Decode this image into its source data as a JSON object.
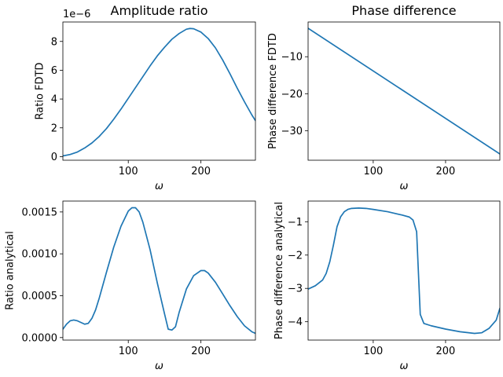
{
  "chart_data": [
    {
      "type": "line",
      "title": "Amplitude ratio",
      "xlabel": "ω",
      "ylabel": "Ratio FDTD",
      "y_offset_label": "1e−6",
      "xlim": [
        10,
        275
      ],
      "ylim": [
        -0.25,
        9.35
      ],
      "x_ticks": [
        100,
        200
      ],
      "x_tick_labels": [
        "100",
        "200"
      ],
      "y_ticks": [
        0,
        2,
        4,
        6,
        8
      ],
      "y_tick_labels": [
        "0",
        "2",
        "4",
        "6",
        "8"
      ],
      "color": "#1f77b4",
      "series": [
        {
          "x": [
            10,
            20,
            30,
            40,
            50,
            60,
            70,
            80,
            90,
            100,
            110,
            120,
            130,
            140,
            150,
            160,
            170,
            180,
            185,
            190,
            200,
            210,
            220,
            230,
            240,
            250,
            260,
            270,
            275
          ],
          "y": [
            0.05,
            0.15,
            0.32,
            0.6,
            0.95,
            1.4,
            1.95,
            2.6,
            3.3,
            4.05,
            4.8,
            5.55,
            6.3,
            7.0,
            7.6,
            8.15,
            8.55,
            8.85,
            8.9,
            8.88,
            8.65,
            8.2,
            7.55,
            6.7,
            5.75,
            4.75,
            3.8,
            2.9,
            2.5
          ]
        }
      ]
    },
    {
      "type": "line",
      "title": "Phase difference",
      "xlabel": "ω",
      "ylabel": "Phase difference FDTD",
      "xlim": [
        10,
        275
      ],
      "ylim": [
        -38,
        -0.6
      ],
      "x_ticks": [
        100,
        200
      ],
      "x_tick_labels": [
        "100",
        "200"
      ],
      "y_ticks": [
        -10,
        -20,
        -30
      ],
      "y_tick_labels": [
        "−10",
        "−20",
        "−30"
      ],
      "color": "#1f77b4",
      "series": [
        {
          "x": [
            10,
            275
          ],
          "y": [
            -2.3,
            -36.3
          ]
        }
      ]
    },
    {
      "type": "line",
      "title": "",
      "xlabel": "ω",
      "ylabel": "Ratio analytical",
      "xlim": [
        10,
        275
      ],
      "ylim": [
        -3e-05,
        0.00163
      ],
      "x_ticks": [
        100,
        200
      ],
      "x_tick_labels": [
        "100",
        "200"
      ],
      "y_ticks": [
        0,
        0.0005,
        0.001,
        0.0015
      ],
      "y_tick_labels": [
        "0.0000",
        "0.0005",
        "0.0010",
        "0.0015"
      ],
      "color": "#1f77b4",
      "series": [
        {
          "x": [
            10,
            15,
            20,
            25,
            30,
            35,
            40,
            45,
            50,
            55,
            60,
            70,
            80,
            90,
            100,
            105,
            110,
            115,
            120,
            130,
            140,
            150,
            155,
            160,
            165,
            170,
            180,
            190,
            200,
            205,
            210,
            220,
            230,
            240,
            250,
            260,
            270,
            275
          ],
          "y": [
            0.0001,
            0.00016,
            0.0002,
            0.00021,
            0.0002,
            0.00018,
            0.00016,
            0.00017,
            0.00023,
            0.00033,
            0.00047,
            0.00078,
            0.00108,
            0.00133,
            0.00151,
            0.00155,
            0.00155,
            0.0015,
            0.00138,
            0.00105,
            0.00065,
            0.00028,
            0.0001,
            9e-05,
            0.00013,
            0.0003,
            0.00058,
            0.00074,
            0.0008,
            0.0008,
            0.00077,
            0.00066,
            0.00052,
            0.00038,
            0.00025,
            0.00014,
            7e-05,
            5e-05
          ]
        }
      ]
    },
    {
      "type": "line",
      "title": "",
      "xlabel": "ω",
      "ylabel": "Phase difference analytical",
      "xlim": [
        10,
        275
      ],
      "ylim": [
        -4.55,
        -0.38
      ],
      "x_ticks": [
        100,
        200
      ],
      "x_tick_labels": [
        "100",
        "200"
      ],
      "y_ticks": [
        -1,
        -2,
        -3,
        -4
      ],
      "y_tick_labels": [
        "−1",
        "−2",
        "−3",
        "−4"
      ],
      "color": "#1f77b4",
      "series": [
        {
          "x": [
            10,
            20,
            30,
            35,
            40,
            45,
            50,
            55,
            60,
            65,
            70,
            80,
            90,
            100,
            120,
            140,
            150,
            155,
            160,
            165,
            170,
            180,
            200,
            220,
            240,
            250,
            260,
            270,
            275
          ],
          "y": [
            -3.02,
            -2.92,
            -2.75,
            -2.55,
            -2.2,
            -1.7,
            -1.15,
            -0.85,
            -0.7,
            -0.63,
            -0.6,
            -0.59,
            -0.6,
            -0.63,
            -0.7,
            -0.8,
            -0.86,
            -0.95,
            -1.3,
            -3.78,
            -4.05,
            -4.12,
            -4.22,
            -4.3,
            -4.35,
            -4.33,
            -4.2,
            -3.95,
            -3.6
          ]
        }
      ]
    }
  ]
}
